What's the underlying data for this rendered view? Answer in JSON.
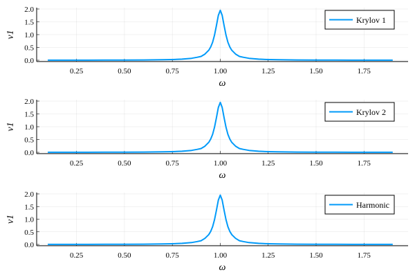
{
  "chart_data": [
    {
      "type": "line",
      "xlabel": "ω",
      "ylabel": "v1",
      "xlim": [
        0.042,
        1.98
      ],
      "ylim": [
        -0.05,
        2.0
      ],
      "xticks": [
        "0.25",
        "0.50",
        "0.75",
        "1.00",
        "1.25",
        "1.50",
        "1.75"
      ],
      "yticks": [
        "0.0",
        "0.5",
        "1.0",
        "1.5",
        "2.0"
      ],
      "grid": true,
      "legend": "top-right",
      "series": [
        {
          "name": "Krylov 1",
          "color": "#009af9",
          "x": [
            0.1,
            0.2,
            0.3,
            0.4,
            0.5,
            0.6,
            0.7,
            0.75,
            0.8,
            0.85,
            0.88,
            0.9,
            0.92,
            0.94,
            0.95,
            0.96,
            0.97,
            0.98,
            0.99,
            1.0,
            1.01,
            1.02,
            1.03,
            1.04,
            1.05,
            1.06,
            1.08,
            1.1,
            1.12,
            1.15,
            1.2,
            1.25,
            1.3,
            1.4,
            1.5,
            1.6,
            1.7,
            1.8,
            1.9
          ],
          "y": [
            0.002,
            0.003,
            0.004,
            0.005,
            0.007,
            0.011,
            0.019,
            0.028,
            0.043,
            0.075,
            0.115,
            0.149,
            0.24,
            0.39,
            0.516,
            0.702,
            0.975,
            1.35,
            1.755,
            1.95,
            1.755,
            1.35,
            0.975,
            0.702,
            0.516,
            0.39,
            0.24,
            0.149,
            0.115,
            0.075,
            0.043,
            0.028,
            0.019,
            0.011,
            0.007,
            0.005,
            0.004,
            0.003,
            0.002
          ]
        }
      ]
    },
    {
      "type": "line",
      "xlabel": "ω",
      "ylabel": "v1",
      "xlim": [
        0.042,
        1.98
      ],
      "ylim": [
        -0.05,
        2.0
      ],
      "xticks": [
        "0.25",
        "0.50",
        "0.75",
        "1.00",
        "1.25",
        "1.50",
        "1.75"
      ],
      "yticks": [
        "0.0",
        "0.5",
        "1.0",
        "1.5",
        "2.0"
      ],
      "grid": true,
      "legend": "top-right",
      "series": [
        {
          "name": "Krylov 2",
          "color": "#009af9",
          "x": [
            0.1,
            0.2,
            0.3,
            0.4,
            0.5,
            0.6,
            0.7,
            0.75,
            0.8,
            0.85,
            0.88,
            0.9,
            0.92,
            0.94,
            0.95,
            0.96,
            0.97,
            0.98,
            0.99,
            1.0,
            1.01,
            1.02,
            1.03,
            1.04,
            1.05,
            1.06,
            1.08,
            1.1,
            1.12,
            1.15,
            1.2,
            1.25,
            1.3,
            1.4,
            1.5,
            1.6,
            1.7,
            1.8,
            1.9
          ],
          "y": [
            0.002,
            0.003,
            0.004,
            0.005,
            0.007,
            0.011,
            0.019,
            0.028,
            0.043,
            0.075,
            0.115,
            0.149,
            0.24,
            0.39,
            0.516,
            0.702,
            0.975,
            1.35,
            1.755,
            1.95,
            1.755,
            1.35,
            0.975,
            0.702,
            0.516,
            0.39,
            0.24,
            0.149,
            0.115,
            0.075,
            0.043,
            0.028,
            0.019,
            0.011,
            0.007,
            0.005,
            0.004,
            0.003,
            0.002
          ]
        }
      ]
    },
    {
      "type": "line",
      "xlabel": "ω",
      "ylabel": "v1",
      "xlim": [
        0.042,
        1.98
      ],
      "ylim": [
        -0.05,
        2.0
      ],
      "xticks": [
        "0.25",
        "0.50",
        "0.75",
        "1.00",
        "1.25",
        "1.50",
        "1.75"
      ],
      "yticks": [
        "0.0",
        "0.5",
        "1.0",
        "1.5",
        "2.0"
      ],
      "grid": true,
      "legend": "top-right",
      "series": [
        {
          "name": "Harmonic",
          "color": "#009af9",
          "x": [
            0.1,
            0.2,
            0.3,
            0.4,
            0.5,
            0.6,
            0.7,
            0.75,
            0.8,
            0.85,
            0.88,
            0.9,
            0.92,
            0.94,
            0.95,
            0.96,
            0.97,
            0.98,
            0.99,
            1.0,
            1.01,
            1.02,
            1.03,
            1.04,
            1.05,
            1.06,
            1.08,
            1.1,
            1.12,
            1.15,
            1.2,
            1.25,
            1.3,
            1.4,
            1.5,
            1.6,
            1.7,
            1.8,
            1.9
          ],
          "y": [
            0.002,
            0.003,
            0.004,
            0.005,
            0.007,
            0.011,
            0.019,
            0.028,
            0.043,
            0.075,
            0.115,
            0.149,
            0.24,
            0.39,
            0.516,
            0.702,
            0.975,
            1.35,
            1.755,
            1.95,
            1.755,
            1.35,
            0.975,
            0.702,
            0.516,
            0.39,
            0.24,
            0.149,
            0.115,
            0.075,
            0.043,
            0.028,
            0.019,
            0.011,
            0.007,
            0.005,
            0.004,
            0.003,
            0.002
          ]
        }
      ]
    }
  ]
}
